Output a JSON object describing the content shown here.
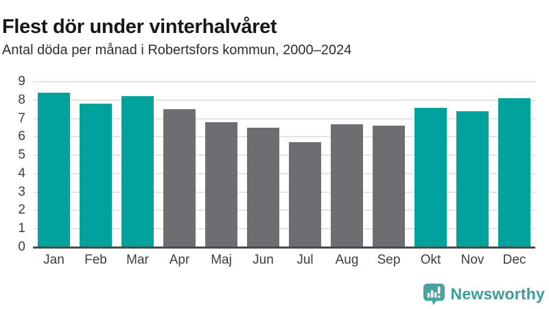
{
  "header": {
    "title": "Flest dör under vinterhalvåret",
    "subtitle": "Antal döda per månad i Robertsfors kommun, 2000–2024"
  },
  "chart_data": {
    "type": "bar",
    "title": "Flest dör under vinterhalvåret",
    "subtitle": "Antal döda per månad i Robertsfors kommun, 2000–2024",
    "categories": [
      "Jan",
      "Feb",
      "Mar",
      "Apr",
      "Maj",
      "Jun",
      "Jul",
      "Aug",
      "Sep",
      "Okt",
      "Nov",
      "Dec"
    ],
    "values": [
      8.4,
      7.8,
      8.2,
      7.5,
      6.8,
      6.5,
      5.7,
      6.7,
      6.6,
      7.6,
      7.4,
      8.1
    ],
    "bar_groups": [
      "winter",
      "winter",
      "winter",
      "summer",
      "summer",
      "summer",
      "summer",
      "summer",
      "summer",
      "winter",
      "winter",
      "winter"
    ],
    "colors": {
      "winter": "#00a29b",
      "summer": "#6e6e72"
    },
    "xlabel": "",
    "ylabel": "",
    "ylim": [
      0,
      9
    ],
    "yticks": [
      0,
      1,
      2,
      3,
      4,
      5,
      6,
      7,
      8,
      9
    ],
    "grid": true,
    "legend": false
  },
  "footer": {
    "brand": "Newsworthy",
    "brand_color": "#3d9c99",
    "logo_icon": "bar-chart-speech-bubble-icon"
  }
}
